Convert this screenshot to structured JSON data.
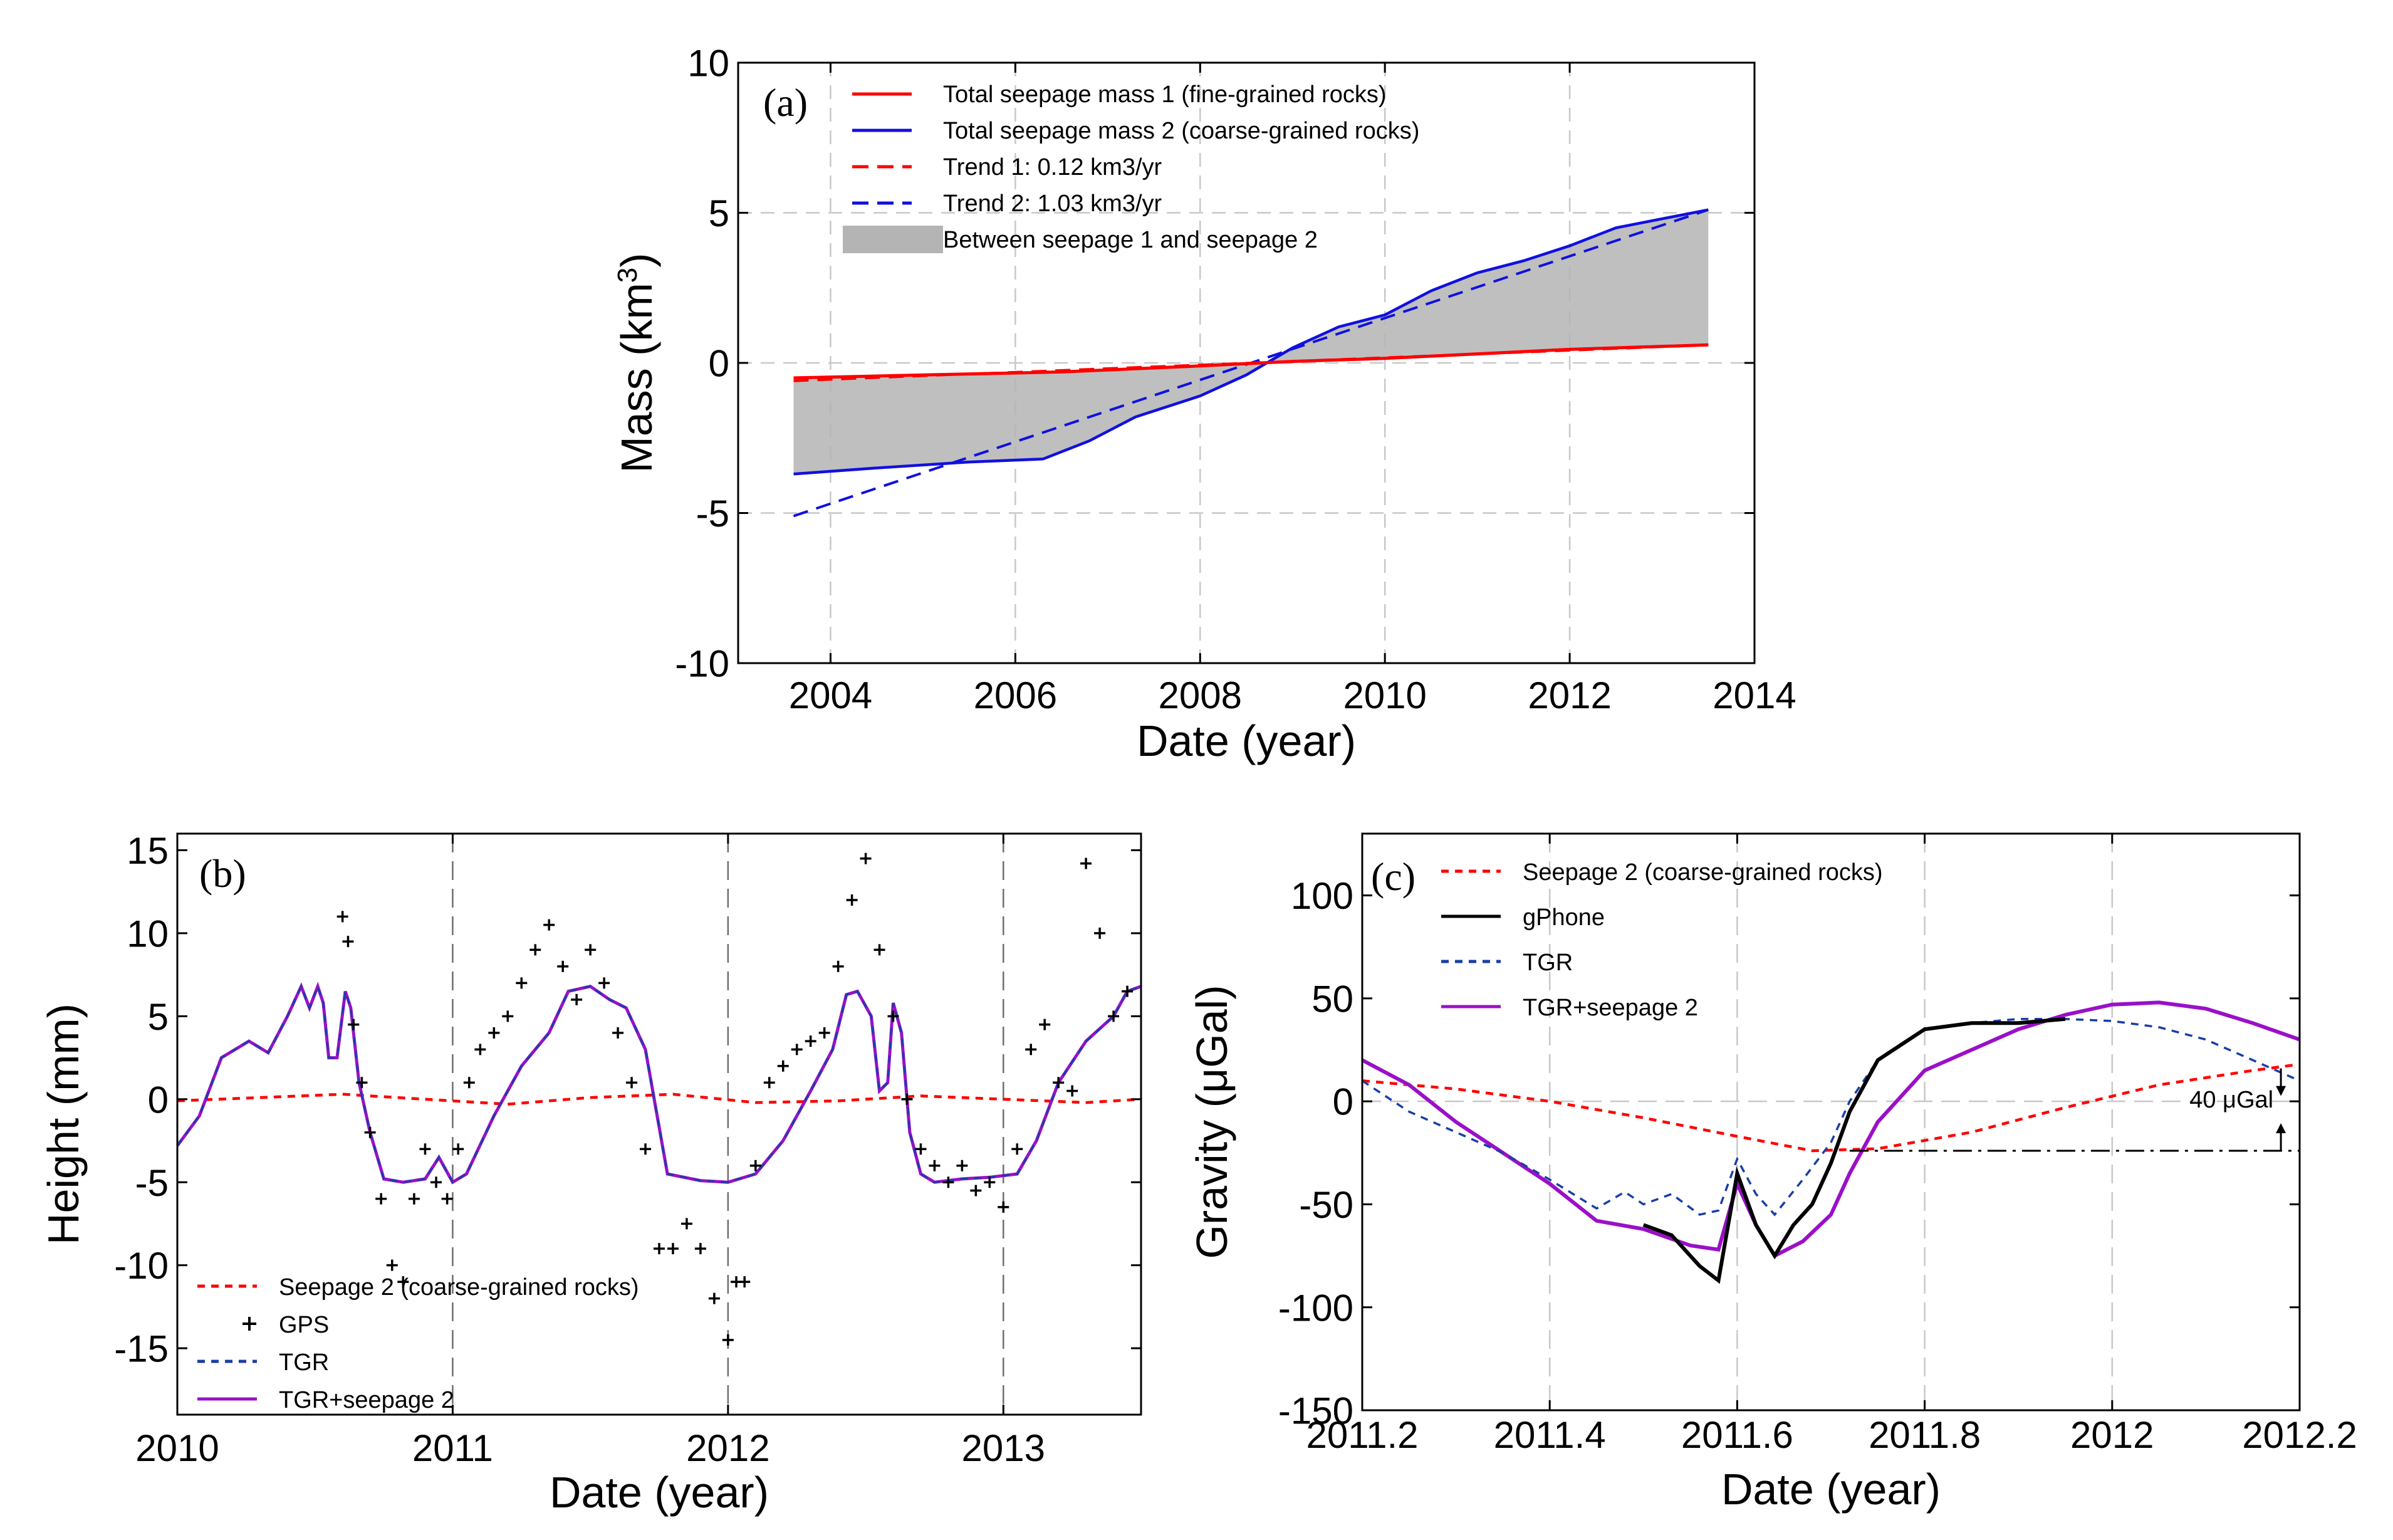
{
  "chart_data": [
    {
      "panel": "a",
      "type": "line",
      "panel_label": "(a)",
      "xlabel": "Date (year)",
      "ylabel": "Mass (km",
      "ylabel_sup": "3",
      "ylabel_end": ")",
      "xlim": [
        2003,
        2014
      ],
      "ylim": [
        -10,
        10
      ],
      "xticks": [
        2004,
        2006,
        2008,
        2010,
        2012,
        2014
      ],
      "xtick_labels": [
        "2004",
        "2006",
        "2008",
        "2010",
        "2012",
        "2014"
      ],
      "yticks": [
        -10,
        -5,
        0,
        5,
        10
      ],
      "ytick_labels": [
        "-10",
        "-5",
        "0",
        "5",
        "10"
      ],
      "colors": {
        "red": "#ff0000",
        "blue": "#1010e0",
        "band": "#b4b4b4"
      },
      "legend": [
        {
          "label": "Total seepage mass 1 (fine-grained rocks)",
          "style": "solid",
          "color": "#ff0000"
        },
        {
          "label": "Total seepage mass 2 (coarse-grained rocks)",
          "style": "solid",
          "color": "#1010e0"
        },
        {
          "label": "Trend 1: 0.12 km3/yr",
          "style": "dashed",
          "color": "#ff0000"
        },
        {
          "label": "Trend 2: 1.03 km3/yr",
          "style": "dashed",
          "color": "#1010e0"
        },
        {
          "label": "Between seepage 1 and seepage 2",
          "style": "patch",
          "color": "#b4b4b4"
        }
      ],
      "series": [
        {
          "name": "Total seepage mass 1 (fine-grained rocks)",
          "x": [
            2003.6,
            2005,
            2006.5,
            2008,
            2009,
            2010,
            2011,
            2012,
            2013.5
          ],
          "y": [
            -0.5,
            -0.4,
            -0.3,
            -0.1,
            0.05,
            0.15,
            0.3,
            0.45,
            0.6
          ]
        },
        {
          "name": "Total seepage mass 2 (coarse-grained rocks)",
          "x": [
            2003.6,
            2004.5,
            2005.5,
            2006.3,
            2006.8,
            2007.3,
            2008,
            2008.5,
            2009.0,
            2009.5,
            2010,
            2010.5,
            2011,
            2011.5,
            2012,
            2012.5,
            2013,
            2013.5
          ],
          "y": [
            -3.7,
            -3.5,
            -3.3,
            -3.2,
            -2.6,
            -1.8,
            -1.1,
            -0.4,
            0.5,
            1.2,
            1.6,
            2.4,
            3.0,
            3.4,
            3.9,
            4.5,
            4.8,
            5.1
          ]
        },
        {
          "name": "Trend 1: 0.12 km3/yr",
          "x": [
            2003.6,
            2013.5
          ],
          "y": [
            -0.6,
            0.6
          ]
        },
        {
          "name": "Trend 2: 1.03 km3/yr",
          "x": [
            2003.6,
            2013.5
          ],
          "y": [
            -5.1,
            5.1
          ]
        }
      ]
    },
    {
      "panel": "b",
      "type": "line",
      "panel_label": "(b)",
      "xlabel": "Date (year)",
      "ylabel": "Height (mm)",
      "xlim": [
        2010,
        2013.5
      ],
      "ylim": [
        -19,
        16
      ],
      "xticks": [
        2010,
        2011,
        2012,
        2013
      ],
      "xtick_labels": [
        "2010",
        "2011",
        "2012",
        "2013"
      ],
      "yticks": [
        -15,
        -10,
        -5,
        0,
        5,
        10,
        15
      ],
      "ytick_labels": [
        "-15",
        "-10",
        "-5",
        "0",
        "5",
        "10",
        "15"
      ],
      "legend": [
        {
          "label": "Seepage 2 (coarse-grained rocks)",
          "style": "dotted",
          "color": "#ff0000"
        },
        {
          "label": "GPS",
          "style": "plus",
          "color": "#000000"
        },
        {
          "label": "TGR",
          "style": "dashed",
          "color": "#1a3ea8"
        },
        {
          "label": "TGR+seepage 2",
          "style": "solid",
          "color": "#9a10c8"
        }
      ],
      "series": [
        {
          "name": "Seepage 2 (coarse-grained rocks)",
          "x": [
            2010,
            2010.3,
            2010.6,
            2010.9,
            2011.2,
            2011.5,
            2011.8,
            2012.1,
            2012.4,
            2012.7,
            2013.0,
            2013.3,
            2013.5
          ],
          "y": [
            -0.1,
            0.1,
            0.3,
            0.0,
            -0.3,
            0.1,
            0.3,
            -0.2,
            -0.1,
            0.2,
            0.0,
            -0.2,
            0.0
          ]
        },
        {
          "name": "TGR+seepage 2",
          "x": [
            2010,
            2010.08,
            2010.16,
            2010.26,
            2010.33,
            2010.4,
            2010.45,
            2010.48,
            2010.51,
            2010.53,
            2010.55,
            2010.58,
            2010.61,
            2010.63,
            2010.66,
            2010.7,
            2010.75,
            2010.82,
            2010.9,
            2010.95,
            2011.0,
            2011.05,
            2011.15,
            2011.25,
            2011.35,
            2011.42,
            2011.5,
            2011.57,
            2011.63,
            2011.7,
            2011.78,
            2011.9,
            2012.0,
            2012.1,
            2012.2,
            2012.3,
            2012.38,
            2012.43,
            2012.47,
            2012.52,
            2012.55,
            2012.58,
            2012.6,
            2012.63,
            2012.66,
            2012.7,
            2012.75,
            2012.85,
            2012.95,
            2013.05,
            2013.12,
            2013.2,
            2013.3,
            2013.4,
            2013.45,
            2013.5
          ],
          "y": [
            -2.8,
            -1,
            2.5,
            3.5,
            2.8,
            5,
            6.8,
            5.5,
            6.8,
            5.8,
            2.5,
            2.5,
            6.5,
            5.5,
            1,
            -2,
            -4.8,
            -5.0,
            -4.8,
            -3.5,
            -5.0,
            -4.5,
            -1,
            2,
            4,
            6.5,
            6.8,
            6,
            5.5,
            3,
            -4.5,
            -4.9,
            -5.0,
            -4.5,
            -2.5,
            0.5,
            3.0,
            6.3,
            6.5,
            5.0,
            0.5,
            1.0,
            5.8,
            4.0,
            -2.0,
            -4.5,
            -5.0,
            -4.8,
            -4.7,
            -4.5,
            -2.5,
            1.0,
            3.5,
            5.0,
            6.5,
            6.8
          ]
        },
        {
          "name": "GPS",
          "x": [
            2010.6,
            2010.62,
            2010.64,
            2010.67,
            2010.7,
            2010.74,
            2010.78,
            2010.82,
            2010.86,
            2010.9,
            2010.94,
            2010.98,
            2011.02,
            2011.06,
            2011.1,
            2011.15,
            2011.2,
            2011.25,
            2011.3,
            2011.35,
            2011.4,
            2011.45,
            2011.5,
            2011.55,
            2011.6,
            2011.65,
            2011.7,
            2011.75,
            2011.8,
            2011.85,
            2011.9,
            2011.95,
            2012.0,
            2012.03,
            2012.06,
            2012.1,
            2012.15,
            2012.2,
            2012.25,
            2012.3,
            2012.35,
            2012.4,
            2012.45,
            2012.5,
            2012.55,
            2012.6,
            2012.65,
            2012.7,
            2012.75,
            2012.8,
            2012.85,
            2012.9,
            2012.95,
            2013.0,
            2013.05,
            2013.1,
            2013.15,
            2013.2,
            2013.25,
            2013.3,
            2013.35,
            2013.4,
            2013.45
          ],
          "y": [
            11,
            9.5,
            4.5,
            1.0,
            -2,
            -6,
            -10,
            -11,
            -6,
            -3,
            -5,
            -6,
            -3,
            1,
            3,
            4,
            5,
            7,
            9,
            10.5,
            8,
            6,
            9,
            7,
            4,
            1,
            -3,
            -9,
            -9,
            -7.5,
            -9,
            -12,
            -14.5,
            -11,
            -11,
            -4,
            1,
            2,
            3,
            3.5,
            4,
            8,
            12,
            14.5,
            9,
            5,
            0,
            -3,
            -4,
            -5,
            -4,
            -5.5,
            -5,
            -6.5,
            -3,
            3,
            4.5,
            1,
            0.5,
            14.2,
            10,
            5,
            6.5
          ]
        }
      ]
    },
    {
      "panel": "c",
      "type": "line",
      "panel_label": "(c)",
      "xlabel": "Date (year)",
      "ylabel": "Gravity (μGal)",
      "xlim": [
        2011.2,
        2012.2
      ],
      "ylim": [
        -150,
        130
      ],
      "xticks": [
        2011.2,
        2011.4,
        2011.6,
        2011.8,
        2012.0,
        2012.2
      ],
      "xtick_labels": [
        "2011.2",
        "2011.4",
        "2011.6",
        "2011.8",
        "2012",
        "2012.2"
      ],
      "yticks": [
        -150,
        -100,
        -50,
        0,
        50,
        100
      ],
      "ytick_labels": [
        "-150",
        "-100",
        "-50",
        "0",
        "50",
        "100"
      ],
      "annotation": "40 μGal",
      "legend": [
        {
          "label": "Seepage 2 (coarse-grained rocks)",
          "style": "dotted",
          "color": "#ff0000"
        },
        {
          "label": "gPhone",
          "style": "solid",
          "color": "#000000"
        },
        {
          "label": "TGR",
          "style": "dashed",
          "color": "#1a3ea8"
        },
        {
          "label": "TGR+seepage 2",
          "style": "solid",
          "color": "#9a10c8"
        }
      ],
      "series": [
        {
          "name": "Seepage 2 (coarse-grained rocks)",
          "x": [
            2011.2,
            2011.3,
            2011.4,
            2011.5,
            2011.6,
            2011.68,
            2011.75,
            2011.85,
            2011.95,
            2012.05,
            2012.15,
            2012.2
          ],
          "y": [
            10,
            6,
            0,
            -8,
            -17,
            -24,
            -23,
            -15,
            -3,
            8,
            15,
            18
          ]
        },
        {
          "name": "TGR",
          "x": [
            2011.2,
            2011.25,
            2011.3,
            2011.35,
            2011.4,
            2011.45,
            2011.48,
            2011.5,
            2011.53,
            2011.56,
            2011.58,
            2011.6,
            2011.62,
            2011.64,
            2011.67,
            2011.7,
            2011.72,
            2011.75,
            2011.8,
            2011.85,
            2011.9,
            2011.95,
            2012.0,
            2012.05,
            2012.1,
            2012.15,
            2012.2
          ],
          "y": [
            10,
            -5,
            -15,
            -25,
            -38,
            -52,
            -44,
            -50,
            -45,
            -55,
            -53,
            -28,
            -45,
            -55,
            -38,
            -20,
            0,
            20,
            35,
            38,
            40,
            40,
            39,
            36,
            30,
            20,
            10
          ]
        },
        {
          "name": "gPhone",
          "x": [
            2011.5,
            2011.53,
            2011.56,
            2011.58,
            2011.6,
            2011.62,
            2011.64,
            2011.66,
            2011.68,
            2011.7,
            2011.72,
            2011.75,
            2011.8,
            2011.85,
            2011.9,
            2011.95
          ],
          "y": [
            -60,
            -65,
            -80,
            -87,
            -35,
            -60,
            -75,
            -60,
            -50,
            -30,
            -5,
            20,
            35,
            38,
            38,
            40
          ]
        },
        {
          "name": "TGR+seepage 2",
          "x": [
            2011.2,
            2011.25,
            2011.3,
            2011.35,
            2011.4,
            2011.45,
            2011.5,
            2011.55,
            2011.58,
            2011.6,
            2011.62,
            2011.64,
            2011.67,
            2011.7,
            2011.72,
            2011.75,
            2011.8,
            2011.85,
            2011.9,
            2011.95,
            2012.0,
            2012.05,
            2012.1,
            2012.15,
            2012.2
          ],
          "y": [
            20,
            8,
            -10,
            -25,
            -40,
            -58,
            -62,
            -70,
            -72,
            -40,
            -60,
            -75,
            -68,
            -55,
            -35,
            -10,
            15,
            25,
            35,
            42,
            47,
            48,
            45,
            38,
            30
          ]
        }
      ]
    }
  ]
}
